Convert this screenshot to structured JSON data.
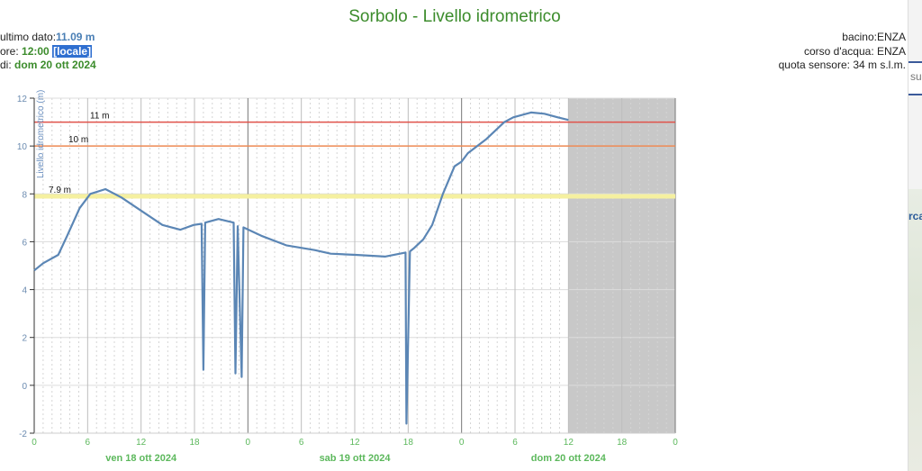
{
  "header": {
    "title": "Sorbolo - Livello idrometrico",
    "last_value_label": "ultimo dato:",
    "last_value": "11.09 m",
    "time_label": "ore:",
    "time_value": "12:00",
    "time_zone": "[locale]",
    "date_label": "di:",
    "date_value": "dom 20 ott 2024",
    "basin": "bacino:ENZA",
    "river": "corso d'acqua: ENZA",
    "sensor_altitude": "quota sensore: 34 m s.l.m."
  },
  "side_panel": {
    "text1": "su",
    "text2": "rca"
  },
  "colors": {
    "line": "#5b86b5",
    "threshold_11": "#e0524a",
    "threshold_10": "#ee8a55",
    "threshold_79": "#f5f0a0",
    "future_shade": "#c8c8c8",
    "axis_x_labels": "#5cb85c"
  },
  "chart_data": {
    "type": "line",
    "title": "Sorbolo - Livello idrometrico",
    "ylabel": "Livello idrometrico (m)",
    "xlabel": "",
    "ylim": [
      -2,
      12
    ],
    "yticks": [
      "-2",
      "0",
      "2",
      "4",
      "6",
      "8",
      "10",
      "12"
    ],
    "xlim_hours": [
      0,
      72
    ],
    "xticks": [
      "0",
      "6",
      "12",
      "18",
      "0",
      "6",
      "12",
      "18",
      "0",
      "6",
      "12",
      "18",
      "0"
    ],
    "day_labels": [
      "ven 18 ott 2024",
      "sab 19 ott 2024",
      "dom 20 ott 2024"
    ],
    "grid": true,
    "shaded_future_from_hour": 60,
    "thresholds": [
      {
        "label": "11 m",
        "value": 11
      },
      {
        "label": "10 m",
        "value": 10
      },
      {
        "label": "7.9 m",
        "value": 7.9
      }
    ],
    "series": [
      {
        "x_hours_from_ven_18_ott_00": [
          0,
          1,
          2.7,
          3.7,
          5.1,
          6.3,
          8,
          9.8,
          12,
          14.4,
          16.4,
          17.9,
          18.8,
          19,
          19.2,
          20.7,
          22.4,
          22.6,
          22.85,
          23.3,
          23.5,
          25.5,
          28.3,
          31.5,
          33.3,
          36.1,
          39.4,
          41.7,
          41.8,
          42.2,
          42.7,
          43.7,
          44.7,
          45.9,
          47.2,
          48,
          48.7,
          50.8,
          52.8,
          53.8,
          55.8,
          57.3,
          58.8,
          60
        ],
        "values": [
          4.8,
          5.1,
          5.45,
          6.25,
          7.4,
          8.0,
          8.2,
          7.85,
          7.3,
          6.7,
          6.5,
          6.7,
          6.75,
          0.65,
          6.8,
          6.95,
          6.8,
          0.5,
          6.65,
          0.35,
          6.6,
          6.25,
          5.85,
          5.65,
          5.5,
          5.45,
          5.38,
          5.55,
          -1.6,
          5.6,
          5.75,
          6.1,
          6.7,
          8.0,
          9.15,
          9.35,
          9.7,
          10.3,
          11.0,
          11.2,
          11.4,
          11.35,
          11.2,
          11.09
        ]
      }
    ]
  }
}
